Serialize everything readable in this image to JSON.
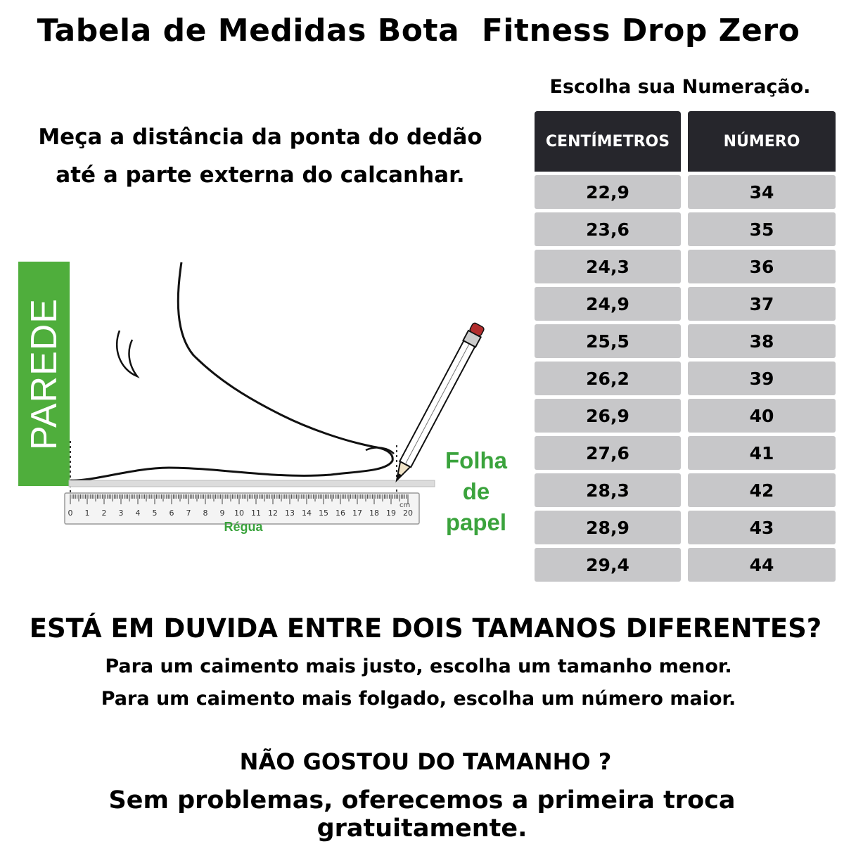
{
  "header": {
    "title": "Tabela de Medidas Bota  Fitness Drop Zero",
    "subtitle": "Escolha sua Numeração."
  },
  "instruction": {
    "line1": "Meça a distância da ponta do dedão",
    "line2": "até a parte externa do calcanhar."
  },
  "illustration": {
    "wall_label": "PAREDE",
    "paper_label": [
      "Folha",
      "de",
      "papel"
    ],
    "ruler_label": "Régua",
    "ruler_unit": "cm",
    "ruler_ticks": [
      "0",
      "1",
      "2",
      "3",
      "4",
      "5",
      "6",
      "7",
      "8",
      "9",
      "10",
      "11",
      "12",
      "13",
      "14",
      "15",
      "16",
      "17",
      "18",
      "19",
      "20"
    ],
    "colors": {
      "wall": "#4fae3c",
      "green_text": "#3aa33c",
      "eraser": "#b22d2d"
    }
  },
  "size_table": {
    "headers": [
      "CENTÍMETROS",
      "NÚMERO"
    ],
    "rows": [
      [
        "22,9",
        "34"
      ],
      [
        "23,6",
        "35"
      ],
      [
        "24,3",
        "36"
      ],
      [
        "24,9",
        "37"
      ],
      [
        "25,5",
        "38"
      ],
      [
        "26,2",
        "39"
      ],
      [
        "26,9",
        "40"
      ],
      [
        "27,6",
        "41"
      ],
      [
        "28,3",
        "42"
      ],
      [
        "28,9",
        "43"
      ],
      [
        "29,4",
        "44"
      ]
    ],
    "colors": {
      "header_bg": "#26262c",
      "cell_bg": "#c7c7c9"
    }
  },
  "footer": {
    "question": "ESTÁ EM DUVIDA ENTRE DOIS TAMANOS DIFERENTES?",
    "tip_tight": "Para um caimento mais justo, escolha um tamanho menor.",
    "tip_loose": "Para um caimento mais folgado, escolha um número maior.",
    "question2": "NÃO GOSTOU DO TAMANHO ?",
    "exchange": "Sem problemas, oferecemos a primeira troca gratuitamente."
  }
}
